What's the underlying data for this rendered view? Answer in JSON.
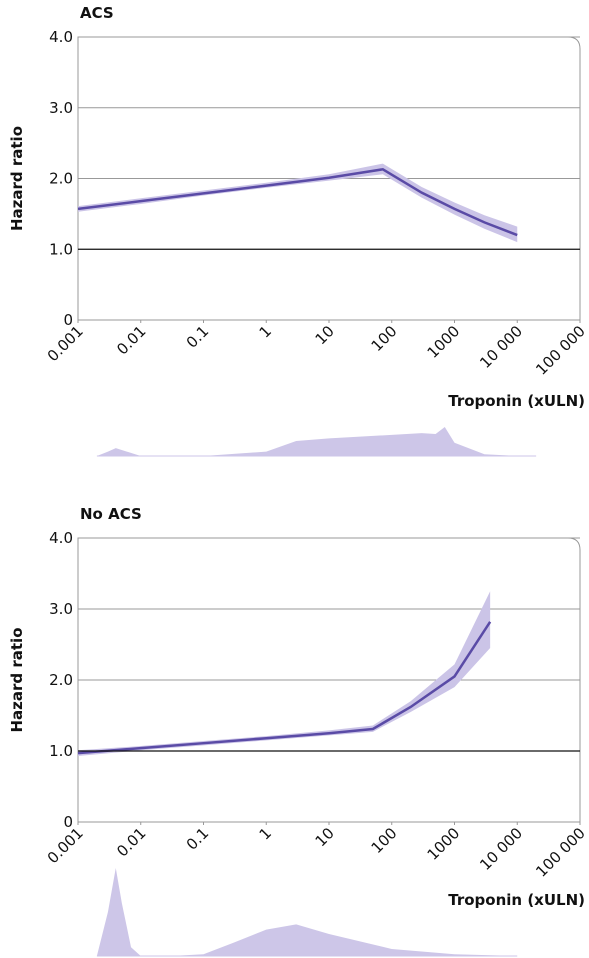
{
  "chart_data": [
    {
      "type": "line",
      "title": "ACS",
      "y_label": "Hazard ratio",
      "x_label": "Troponin (xULN)",
      "xscale": "log",
      "xlim": [
        0.001,
        100000
      ],
      "xticks": [
        0.001,
        0.01,
        0.1,
        1,
        10,
        100,
        1000,
        {
          "value": 10000,
          "label": "10 000"
        },
        {
          "value": 100000,
          "label": "100 000"
        }
      ],
      "ylim": [
        0,
        4
      ],
      "yticks": [
        0,
        {
          "value": 1,
          "label": "1.0"
        },
        {
          "value": 2,
          "label": "2.0"
        },
        {
          "value": 3,
          "label": "3.0"
        },
        {
          "value": 4,
          "label": "4.0"
        }
      ],
      "grid": true,
      "reference_line": 1,
      "x": [
        0.001,
        0.01,
        0.1,
        1,
        10,
        72,
        300,
        1000,
        3000,
        10000
      ],
      "series": [
        {
          "color": "#5a4ba6",
          "band_color": "#cbc4e7",
          "values": [
            1.57,
            1.68,
            1.79,
            1.9,
            2.01,
            2.13,
            1.8,
            1.57,
            1.38,
            1.2
          ],
          "lower": [
            1.53,
            1.64,
            1.76,
            1.87,
            1.97,
            2.06,
            1.73,
            1.49,
            1.29,
            1.1
          ],
          "upper": [
            1.61,
            1.72,
            1.83,
            1.94,
            2.06,
            2.21,
            1.88,
            1.66,
            1.48,
            1.32
          ]
        }
      ],
      "density": {
        "color": "#cdc6e8",
        "x": [
          0.002,
          0.003,
          0.004,
          0.006,
          0.01,
          0.1,
          1,
          3,
          10,
          100,
          300,
          500,
          700,
          1000,
          3000,
          10000,
          20000
        ],
        "values": [
          0,
          0.05,
          0.09,
          0.05,
          0,
          0,
          0.05,
          0.17,
          0.2,
          0.24,
          0.26,
          0.25,
          0.33,
          0.15,
          0.02,
          0,
          0
        ]
      }
    },
    {
      "type": "line",
      "title": "No ACS",
      "y_label": "Hazard ratio",
      "x_label": "Troponin (xULN)",
      "xscale": "log",
      "xlim": [
        0.001,
        100000
      ],
      "xticks": [
        0.001,
        0.01,
        0.1,
        1,
        10,
        100,
        1000,
        {
          "value": 10000,
          "label": "10 000"
        },
        {
          "value": 100000,
          "label": "100 000"
        }
      ],
      "ylim": [
        0,
        4
      ],
      "yticks": [
        0,
        {
          "value": 1,
          "label": "1.0"
        },
        {
          "value": 2,
          "label": "2.0"
        },
        {
          "value": 3,
          "label": "3.0"
        },
        {
          "value": 4,
          "label": "4.0"
        }
      ],
      "grid": true,
      "reference_line": 1,
      "x": [
        0.001,
        0.01,
        0.1,
        1,
        10,
        50,
        200,
        1000,
        3700
      ],
      "series": [
        {
          "color": "#5a4ba6",
          "band_color": "#cbc4e7",
          "values": [
            0.97,
            1.04,
            1.11,
            1.18,
            1.25,
            1.31,
            1.62,
            2.05,
            2.82
          ],
          "lower": [
            0.93,
            1.01,
            1.08,
            1.15,
            1.22,
            1.27,
            1.55,
            1.9,
            2.45
          ],
          "upper": [
            1.01,
            1.07,
            1.14,
            1.21,
            1.29,
            1.36,
            1.7,
            2.22,
            3.25
          ]
        }
      ],
      "density": {
        "color": "#cdc6e8",
        "x": [
          0.002,
          0.003,
          0.004,
          0.005,
          0.007,
          0.01,
          0.03,
          0.1,
          0.3,
          1,
          3,
          10,
          100,
          1000,
          10000
        ],
        "values": [
          0,
          0.5,
          1,
          0.6,
          0.1,
          0,
          0,
          0.02,
          0.15,
          0.3,
          0.36,
          0.25,
          0.08,
          0.02,
          0
        ]
      }
    }
  ]
}
